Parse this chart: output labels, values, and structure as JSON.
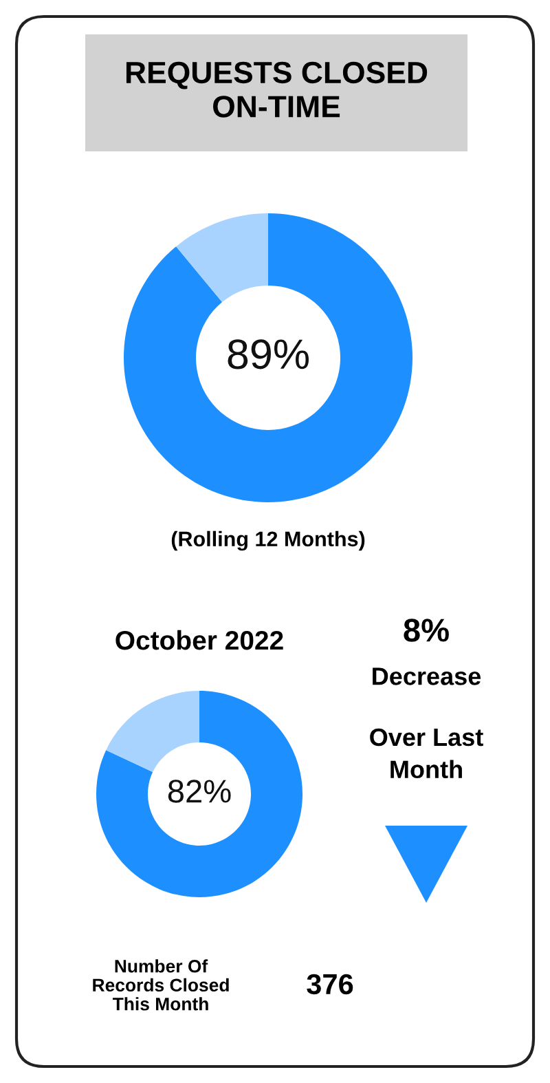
{
  "chart_data": [
    {
      "type": "donut",
      "title": "REQUESTS CLOSED ON-TIME",
      "categories": [
        null,
        null
      ],
      "values": [
        89,
        11
      ],
      "colors": [
        "#1e8fff",
        "#a8d3ff"
      ],
      "value_labels": [
        "89%",
        null
      ],
      "annotations": [
        "(Rolling 12 Months)"
      ]
    },
    {
      "type": "donut",
      "title": "October 2022",
      "categories": [
        null,
        null
      ],
      "values": [
        82,
        18
      ],
      "colors": [
        "#1e8fff",
        "#a8d3ff"
      ],
      "value_labels": [
        "82%",
        null
      ]
    },
    {
      "type": "other",
      "annotations": [
        "8%",
        "Decrease",
        "Over Last Month",
        "Number Of Records Closed This Month",
        "376"
      ]
    }
  ]
}
